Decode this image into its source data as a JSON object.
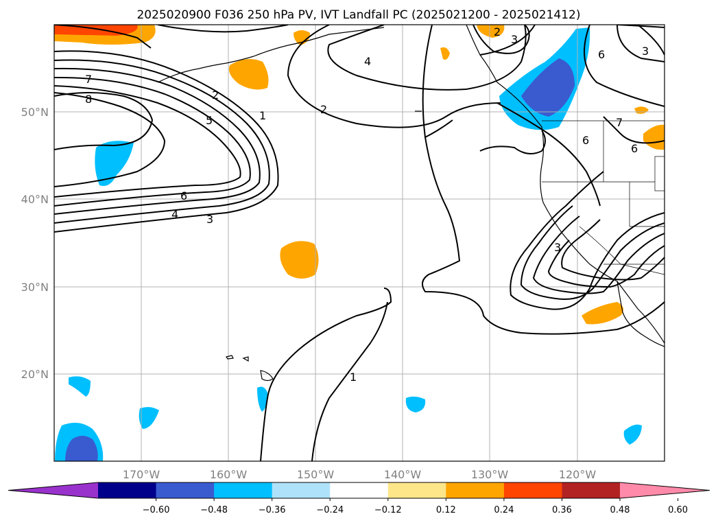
{
  "title": "2025020900 F036 250 hPa PV, IVT Landfall PC (2025021200 - 2025021412)",
  "lon_labels": [
    "170°W",
    "160°W",
    "150°W",
    "140°W",
    "130°W",
    "120°W"
  ],
  "lat_labels": [
    "50°N",
    "40°N",
    "30°N",
    "20°N"
  ],
  "contour_labels": [
    "7",
    "8",
    "2",
    "5",
    "1",
    "6",
    "4",
    "3",
    "4",
    "2",
    "2",
    "3",
    "6",
    "7",
    "6",
    "6",
    "3",
    "3",
    "1"
  ],
  "colorbar": {
    "colors": [
      "#9932cc",
      "#00008b",
      "#3a5bd0",
      "#00bfff",
      "#aee2fa",
      "#ffffff",
      "#fde68a",
      "#ffa500",
      "#ff4500",
      "#b22222",
      "#ff8aa9"
    ],
    "ticks": [
      "−0.60",
      "−0.48",
      "−0.36",
      "−0.24",
      "−0.12",
      "0.12",
      "0.24",
      "0.36",
      "0.48",
      "0.60"
    ]
  }
}
